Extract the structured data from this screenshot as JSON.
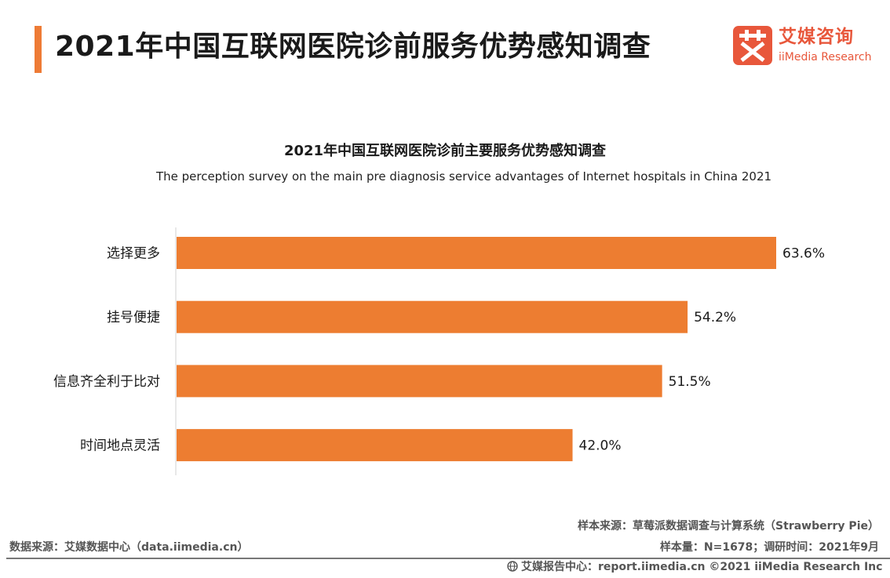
{
  "header": {
    "title": "2021年中国互联网医院诊前服务优势感知调查",
    "accent_color": "#ee7b35"
  },
  "logo": {
    "icon": "ai-character-logo-icon",
    "name_cn": "艾媒咨询",
    "name_en": "iiMedia Research",
    "color": "#e8573b"
  },
  "chart_data": {
    "type": "bar",
    "orientation": "horizontal",
    "title": "2021年中国互联网医院诊前主要服务优势感知调查",
    "subtitle": "The perception survey on the  main pre diagnosis service advantages of Internet hospitals in China  2021",
    "categories": [
      "选择更多",
      "挂号便捷",
      "信息齐全利于比对",
      "时间地点灵活"
    ],
    "values": [
      63.6,
      54.2,
      51.5,
      42.0
    ],
    "labels": [
      "63.6%",
      "54.2%",
      "51.5%",
      "42.0%"
    ],
    "unit": "%",
    "bar_color": "#ed7d31",
    "grid": false,
    "legend": "none"
  },
  "source": {
    "left": "数据来源：艾媒数据中心（data.iimedia.cn）",
    "sample_source": "样本来源：草莓派数据调查与计算系统（Strawberry Pie）",
    "sample_size": "样本量：N=1678；调研时间：2021年9月"
  },
  "footer": {
    "icon": "globe-icon",
    "text": "艾媒报告中心：report.iimedia.cn   ©2021  iiMedia Research  Inc"
  }
}
